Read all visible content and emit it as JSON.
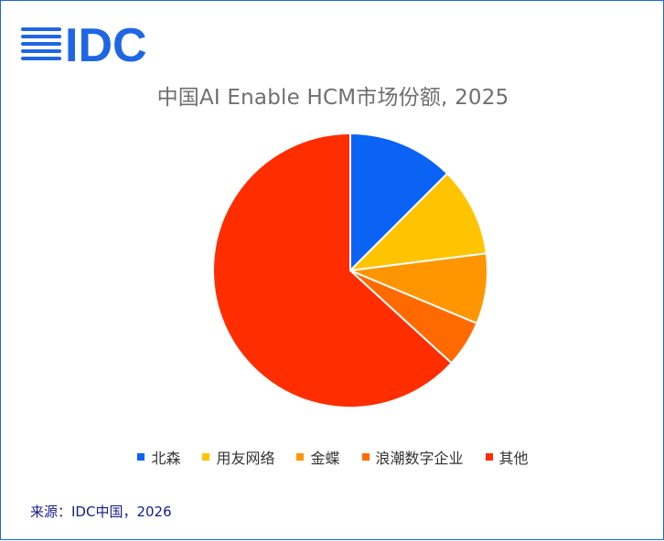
{
  "logo": {
    "text": "IDC",
    "color": "#1f66e5"
  },
  "source": "来源：IDC中国，2026",
  "chart_data": {
    "type": "pie",
    "title": "中国AI Enable HCM市场份额, 2025",
    "series": [
      {
        "name": "北森",
        "value": 12.5,
        "color": "#0a63f5"
      },
      {
        "name": "用友网络",
        "value": 10.5,
        "color": "#ffc400"
      },
      {
        "name": "金蝶",
        "value": 8.3,
        "color": "#ff9500"
      },
      {
        "name": "浪潮数字企业",
        "value": 5.5,
        "color": "#ff6a00"
      },
      {
        "name": "其他",
        "value": 63.2,
        "color": "#ff2d00"
      }
    ],
    "legend_position": "bottom"
  }
}
